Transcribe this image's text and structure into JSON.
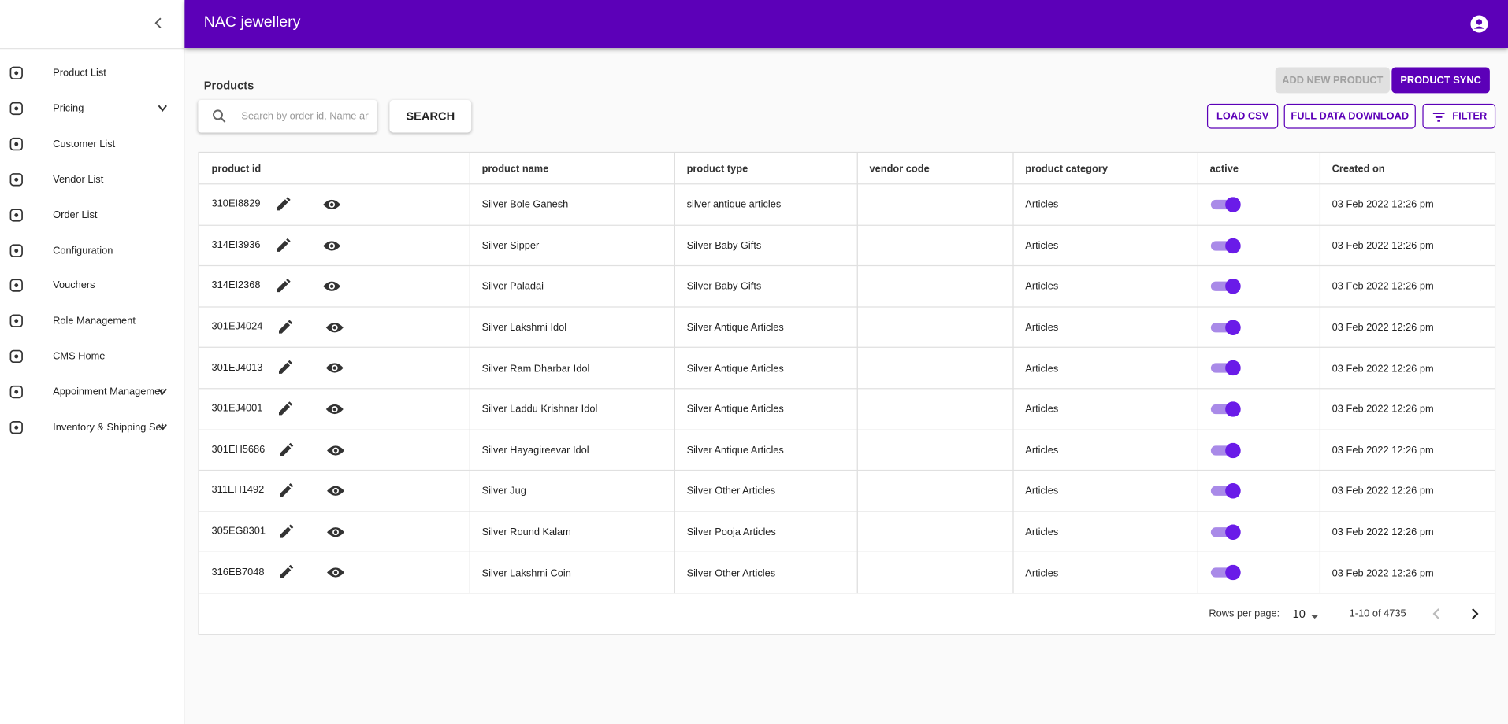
{
  "header": {
    "title": "NAC jewellery"
  },
  "sidebar": {
    "items": [
      {
        "label": "Product List"
      },
      {
        "label": "Pricing",
        "expandable": true
      },
      {
        "label": "Customer List"
      },
      {
        "label": "Vendor List"
      },
      {
        "label": "Order List"
      },
      {
        "label": "Configuration"
      },
      {
        "label": "Vouchers"
      },
      {
        "label": "Role Management"
      },
      {
        "label": "CMS Home"
      },
      {
        "label": "Appoinment Management",
        "expandable": true
      },
      {
        "label": "Inventory & Shipping Setup",
        "expandable": true
      }
    ]
  },
  "page": {
    "title": "Products",
    "search_placeholder": "Search by order id, Name and",
    "search_button": "SEARCH",
    "add_button": "ADD NEW PRODUCT",
    "sync_button": "PRODUCT SYNC",
    "load_csv": "LOAD CSV",
    "full_download": "FULL DATA DOWNLOAD",
    "filter": "FILTER"
  },
  "table": {
    "columns": [
      "product id",
      "product name",
      "product type",
      "vendor code",
      "product category",
      "active",
      "Created on"
    ],
    "rows": [
      {
        "product_id": "310EI8829",
        "product_name": "Silver Bole Ganesh",
        "product_type": "silver antique articles",
        "product_category": "Articles",
        "active": true,
        "created_on": "03 Feb 2022 12:26 pm"
      },
      {
        "product_id": "314EI3936",
        "product_name": "Silver Sipper",
        "product_type": "Silver Baby Gifts",
        "product_category": "Articles",
        "active": true,
        "created_on": "03 Feb 2022 12:26 pm"
      },
      {
        "product_id": "314EI2368",
        "product_name": "Silver Paladai",
        "product_type": "Silver Baby Gifts",
        "product_category": "Articles",
        "active": true,
        "created_on": "03 Feb 2022 12:26 pm"
      },
      {
        "product_id": "301EJ4024",
        "product_name": "Silver Lakshmi Idol",
        "product_type": "Silver Antique Articles",
        "product_category": "Articles",
        "active": true,
        "created_on": "03 Feb 2022 12:26 pm"
      },
      {
        "product_id": "301EJ4013",
        "product_name": "Silver Ram Dharbar Idol",
        "product_type": "Silver Antique Articles",
        "product_category": "Articles",
        "active": true,
        "created_on": "03 Feb 2022 12:26 pm"
      },
      {
        "product_id": "301EJ4001",
        "product_name": "Silver Laddu Krishnar Idol",
        "product_type": "Silver Antique Articles",
        "product_category": "Articles",
        "active": true,
        "created_on": "03 Feb 2022 12:26 pm"
      },
      {
        "product_id": "301EH5686",
        "product_name": "Silver Hayagireevar Idol",
        "product_type": "Silver Antique Articles",
        "product_category": "Articles",
        "active": true,
        "created_on": "03 Feb 2022 12:26 pm"
      },
      {
        "product_id": "311EH1492",
        "product_name": "Silver Jug",
        "product_type": "Silver Other Articles",
        "product_category": "Articles",
        "active": true,
        "created_on": "03 Feb 2022 12:26 pm"
      },
      {
        "product_id": "305EG8301",
        "product_name": "Silver Round Kalam",
        "product_type": "Silver Pooja Articles",
        "product_category": "Articles",
        "active": true,
        "created_on": "03 Feb 2022 12:26 pm"
      },
      {
        "product_id": "316EB7048",
        "product_name": "Silver Lakshmi Coin",
        "product_type": "Silver Other Articles",
        "product_category": "Articles",
        "active": true,
        "created_on": "03 Feb 2022 12:26 pm"
      }
    ]
  },
  "pagination": {
    "rows_per_page_label": "Rows per page:",
    "rows_per_page": "10",
    "range": "1-10 of 4735"
  }
}
